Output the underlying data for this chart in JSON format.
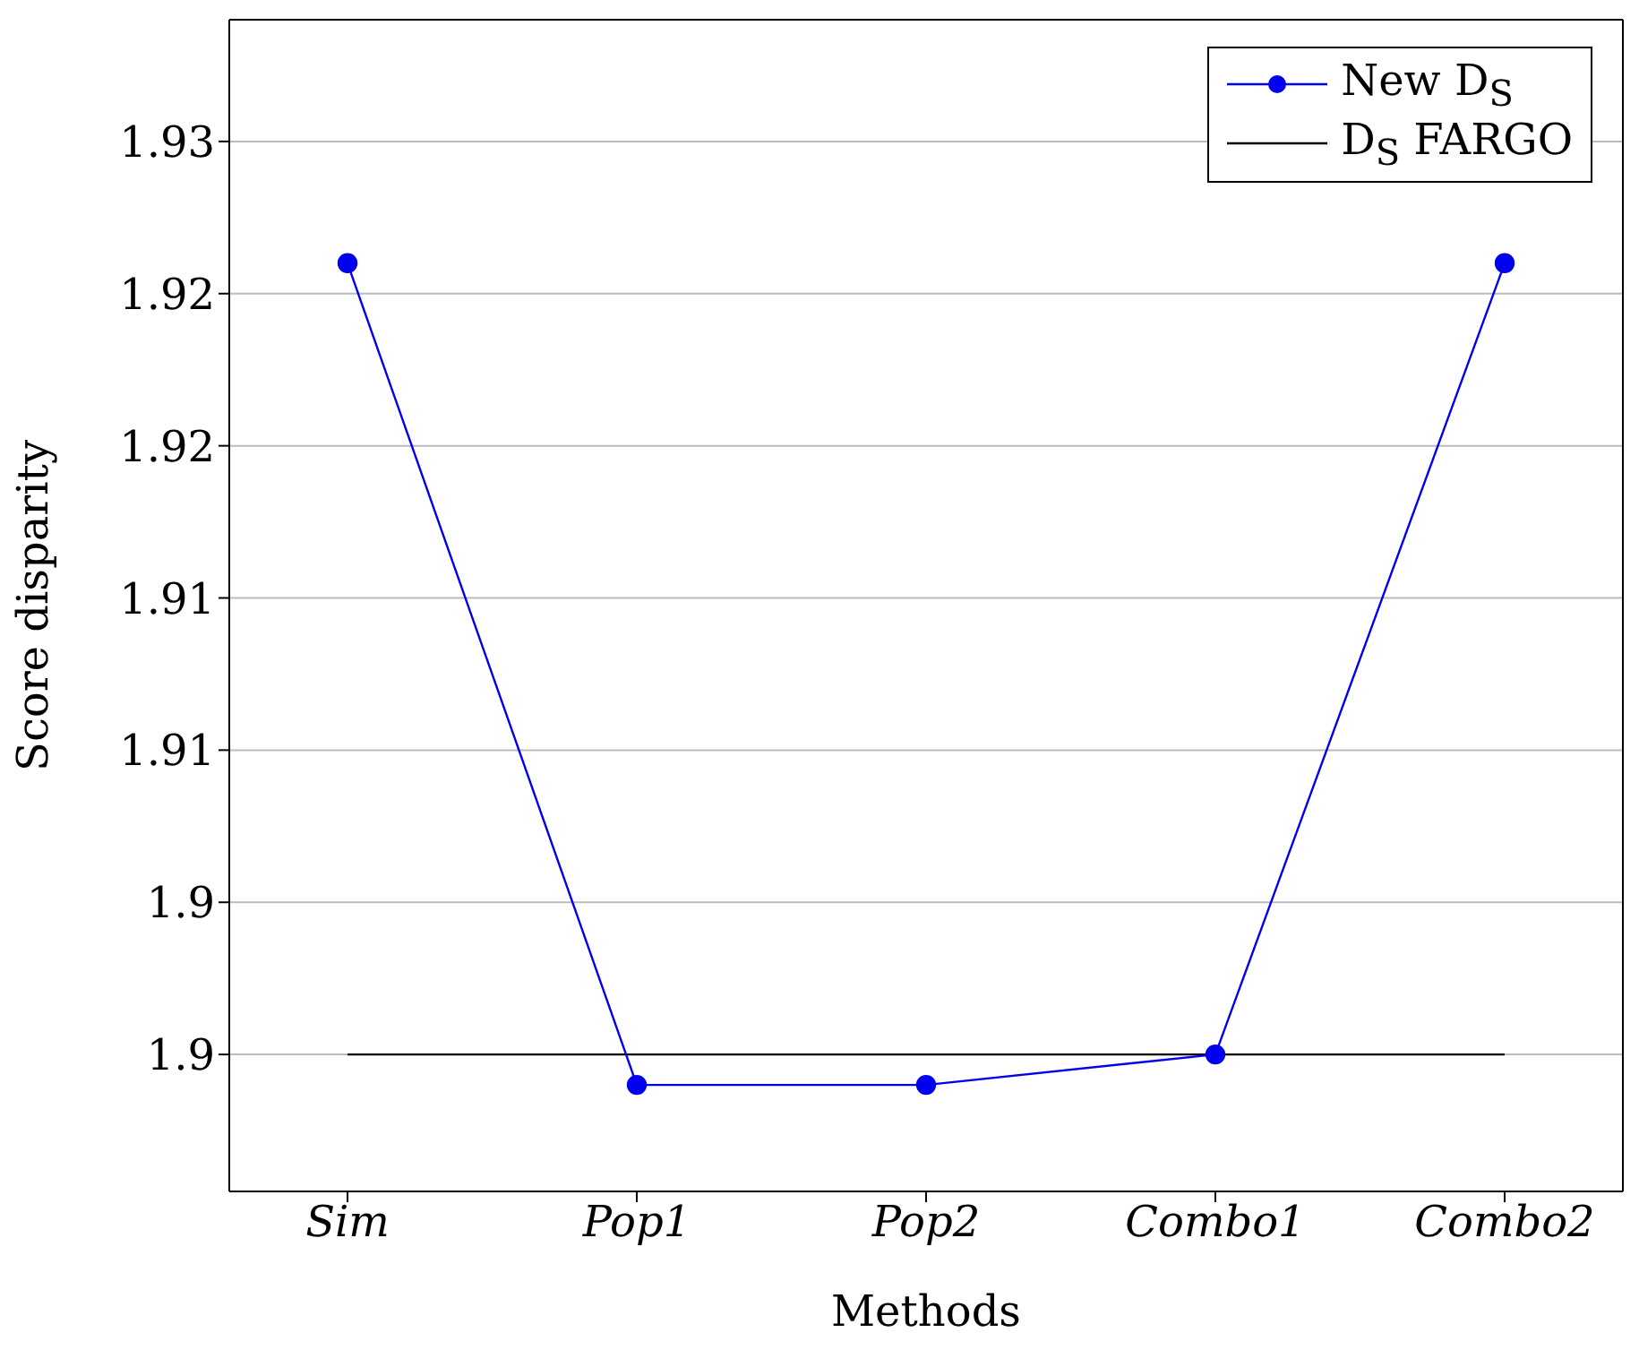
{
  "chart_data": {
    "type": "line",
    "xlabel": "Methods",
    "ylabel": "Score disparity",
    "categories": [
      "Sim",
      "Pop1",
      "Pop2",
      "Combo1",
      "Combo2"
    ],
    "series": [
      {
        "name": "New D$_{S}$",
        "color": "#0000ee",
        "values": [
          1.926,
          1.899,
          1.899,
          1.9,
          1.926
        ],
        "marker": "circle"
      },
      {
        "name": "D$_{S}$ FARGO",
        "color": "#000000",
        "values": [
          1.9,
          1.9,
          1.9,
          1.9,
          1.9
        ],
        "marker": "none"
      }
    ],
    "ylim": [
      1.8955,
      1.934
    ],
    "yticks": [
      {
        "value": 1.9,
        "label": "1.9"
      },
      {
        "value": 1.905,
        "label": "1.9"
      },
      {
        "value": 1.91,
        "label": "1.91"
      },
      {
        "value": 1.915,
        "label": "1.91"
      },
      {
        "value": 1.92,
        "label": "1.92"
      },
      {
        "value": 1.925,
        "label": "1.92"
      },
      {
        "value": 1.93,
        "label": "1.93"
      }
    ],
    "grid": "y",
    "legend": "top right"
  }
}
